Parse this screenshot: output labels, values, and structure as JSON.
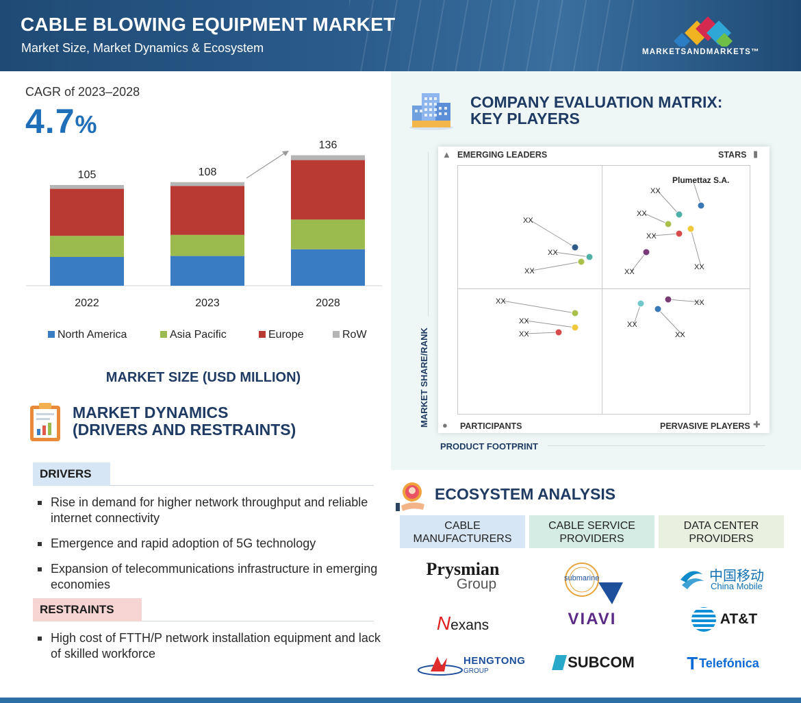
{
  "header": {
    "title": "CABLE BLOWING EQUIPMENT MARKET",
    "subtitle": "Market Size, Market Dynamics & Ecosystem",
    "logo_text": "MARKETSANDMARKETS™"
  },
  "cagr": {
    "label": "CAGR of 2023–2028",
    "value": "4.7",
    "unit": "%"
  },
  "chart_data": {
    "type": "bar",
    "stacked": true,
    "title": "MARKET SIZE (USD MILLION)",
    "categories": [
      "2022",
      "2023",
      "2028"
    ],
    "totals": [
      105,
      108,
      136
    ],
    "series": [
      {
        "name": "North America",
        "color": "#3a7cc4",
        "values": [
          30,
          31,
          38
        ]
      },
      {
        "name": "Asia Pacific",
        "color": "#9cbb4e",
        "values": [
          22,
          22,
          31
        ]
      },
      {
        "name": "Europe",
        "color": "#b93a33",
        "values": [
          49,
          51,
          62
        ]
      },
      {
        "name": "RoW",
        "color": "#b5b5b5",
        "values": [
          4,
          4,
          5
        ]
      }
    ],
    "legend_position": "bottom",
    "grid": false
  },
  "market_dynamics": {
    "title_line1": "MARKET DYNAMICS",
    "title_line2": "(DRIVERS AND RESTRAINTS)",
    "drivers_label": "DRIVERS",
    "drivers": [
      "Rise in demand for higher network throughput and reliable internet connectivity",
      "Emergence and rapid adoption of 5G technology",
      "Expansion of telecommunications infrastructure in emerging economies"
    ],
    "restraints_label": "RESTRAINTS",
    "restraints": [
      "High cost of FTTH/P network installation equipment and lack of skilled workforce"
    ]
  },
  "matrix": {
    "title_line1": "COMPANY EVALUATION MATRIX:",
    "title_line2": "KEY PLAYERS",
    "quadrants": {
      "top_left": "EMERGING LEADERS",
      "top_right": "STARS",
      "bottom_left": "PARTICIPANTS",
      "bottom_right": "PERVASIVE PLAYERS"
    },
    "y_axis": "MARKET SHARE/RANK",
    "x_axis": "PRODUCT FOOTPRINT",
    "named_company": "Plumettaz S.A.",
    "placeholder_label": "XX",
    "dot_colors": [
      "#3a78b8",
      "#4fb0a6",
      "#a9c04d",
      "#d84b4b",
      "#f0c93a",
      "#7a3a74",
      "#2f5b86",
      "#6fc7c9"
    ]
  },
  "ecosystem": {
    "title": "ECOSYSTEM ANALYSIS",
    "columns": [
      {
        "header_line1": "CABLE",
        "header_line2": "MANUFACTURERS",
        "brands": [
          "Prysmian",
          "Group",
          "exans",
          "HENGTONG",
          "GROUP"
        ]
      },
      {
        "header_line1": "CABLE SERVICE",
        "header_line2": "PROVIDERS",
        "brands": [
          "submarine",
          "VIAVI",
          "SUBCOM"
        ]
      },
      {
        "header_line1": "DATA CENTER",
        "header_line2": "PROVIDERS",
        "brands": [
          "中国移动",
          "China Mobile",
          "AT&T",
          "Telefónica"
        ]
      }
    ]
  }
}
